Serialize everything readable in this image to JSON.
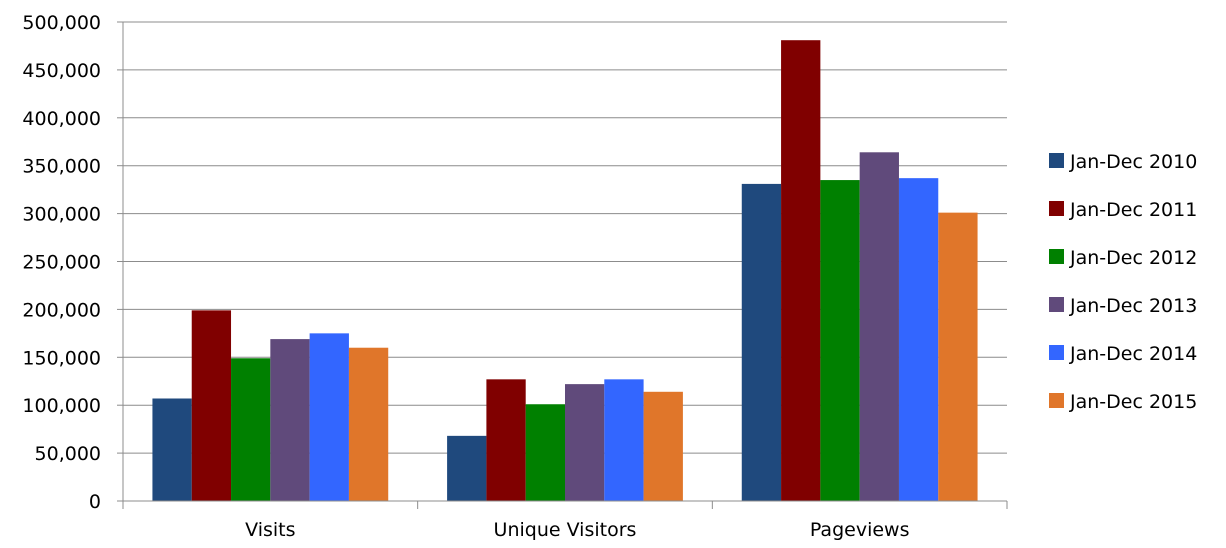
{
  "chart_data": {
    "type": "bar",
    "categories": [
      "Visits",
      "Unique Visitors",
      "Pageviews"
    ],
    "series": [
      {
        "name": "Jan-Dec 2010",
        "values": [
          107000,
          68000,
          331000
        ],
        "color": "#1f497d"
      },
      {
        "name": "Jan-Dec 2011",
        "values": [
          199000,
          127000,
          481000
        ],
        "color": "#800000"
      },
      {
        "name": "Jan-Dec 2012",
        "values": [
          149000,
          101000,
          335000
        ],
        "color": "#008000"
      },
      {
        "name": "Jan-Dec 2013",
        "values": [
          169000,
          122000,
          364000
        ],
        "color": "#604a7b"
      },
      {
        "name": "Jan-Dec 2014",
        "values": [
          175000,
          127000,
          337000
        ],
        "color": "#3366ff"
      },
      {
        "name": "Jan-Dec 2015",
        "values": [
          160000,
          114000,
          301000
        ],
        "color": "#e0762a"
      }
    ],
    "y_ticks": [
      "0",
      "50,000",
      "100,000",
      "150,000",
      "200,000",
      "250,000",
      "300,000",
      "350,000",
      "400,000",
      "450,000",
      "500,000"
    ],
    "ylim": [
      0,
      500000
    ],
    "grid": true,
    "legend_position": "right",
    "title": "",
    "xlabel": "",
    "ylabel": ""
  }
}
